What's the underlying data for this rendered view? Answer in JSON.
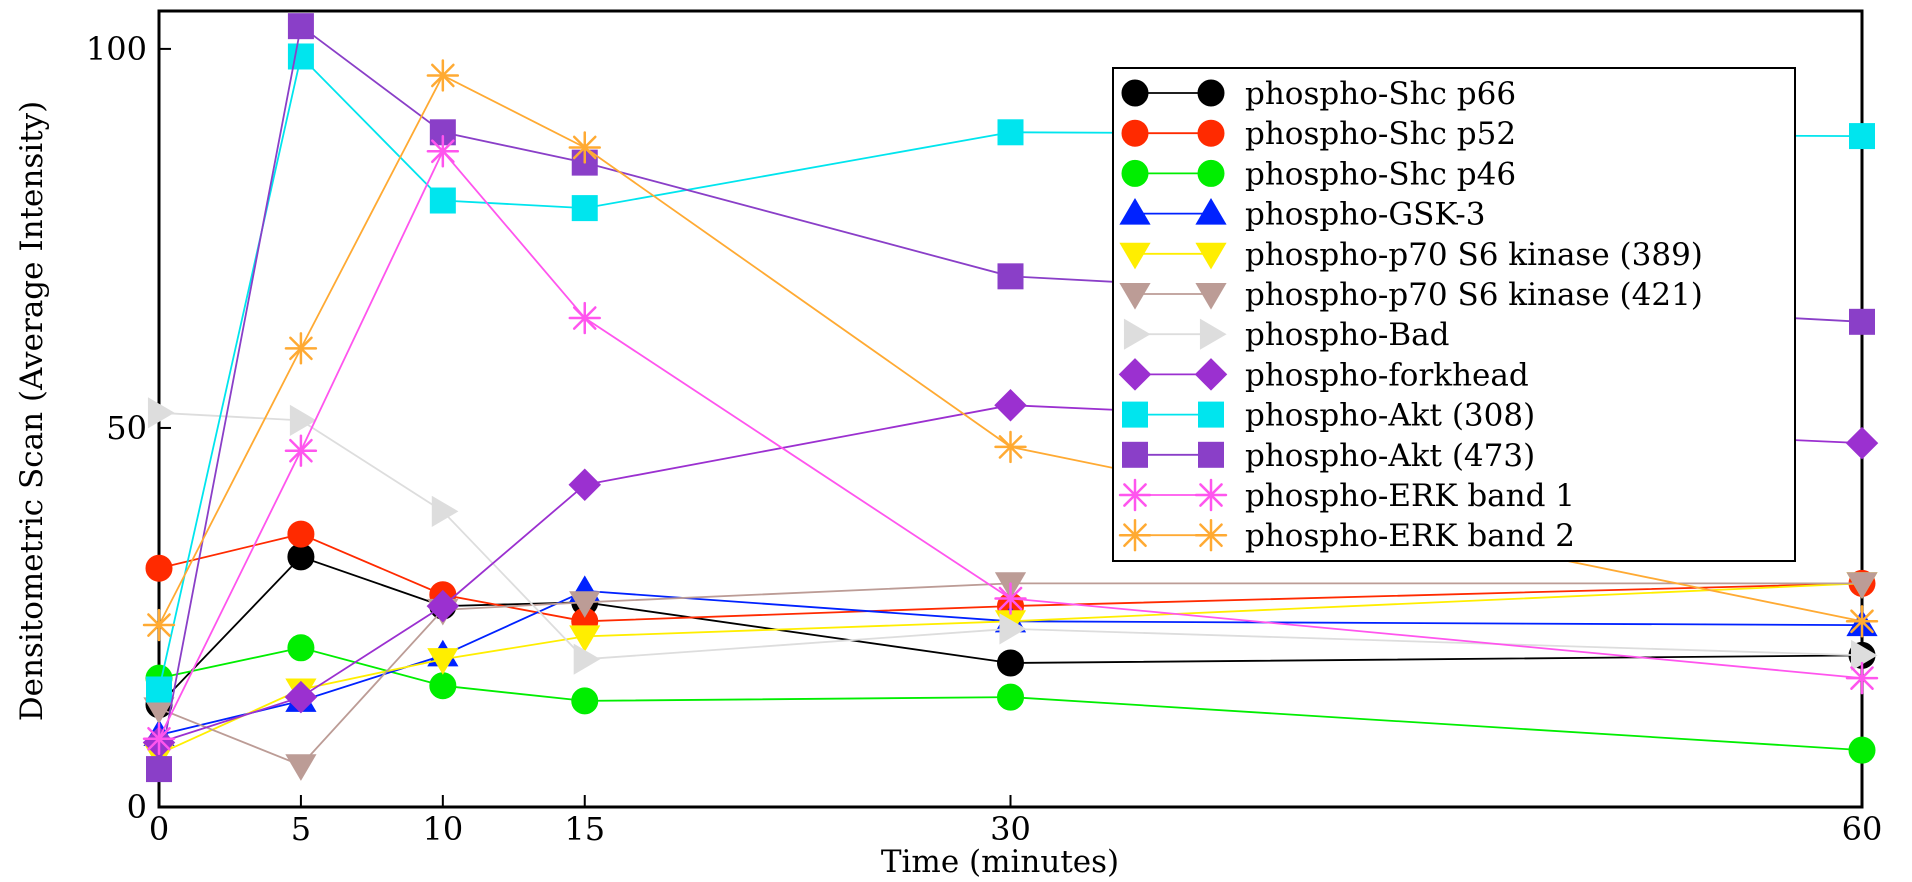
{
  "chart_data": {
    "type": "line",
    "xlabel": "Time (minutes)",
    "ylabel": "Densitometric Scan (Average Intensity)",
    "xlim": [
      0,
      60
    ],
    "ylim": [
      0,
      105
    ],
    "x": [
      0,
      5,
      10,
      15,
      30,
      60
    ],
    "x_ticks": [
      0,
      5,
      10,
      15,
      30,
      60
    ],
    "y_ticks": [
      0,
      50,
      100
    ],
    "grid": false,
    "legend_position": "top-right",
    "series": [
      {
        "name": "phospho-Shc p66",
        "color": "#000000",
        "marker": "circle",
        "values": [
          13.5,
          33,
          26.5,
          27,
          19,
          20
        ]
      },
      {
        "name": "phospho-Shc p52",
        "color": "#ff2a00",
        "marker": "circle",
        "values": [
          31.5,
          36,
          28,
          24.5,
          26.5,
          29.5
        ]
      },
      {
        "name": "phospho-Shc p46",
        "color": "#00ee00",
        "marker": "circle",
        "values": [
          17,
          21,
          16,
          14,
          14.5,
          7.5
        ]
      },
      {
        "name": "phospho-GSK-3",
        "color": "#0022ff",
        "marker": "triangle-up",
        "values": [
          9.5,
          14,
          20,
          28.5,
          24.5,
          24
        ]
      },
      {
        "name": "phospho-p70 S6 kinase (389)",
        "color": "#ffee00",
        "marker": "triangle-down",
        "values": [
          7,
          15.5,
          19.5,
          22.5,
          24.5,
          29.5
        ]
      },
      {
        "name": "phospho-p70 S6 kinase (421)",
        "color": "#bc9c96",
        "marker": "triangle-down",
        "values": [
          13,
          5.5,
          26,
          27,
          29.5,
          29.5
        ]
      },
      {
        "name": "phospho-Bad",
        "color": "#dddddd",
        "marker": "triangle-right",
        "values": [
          52,
          51,
          39,
          19.5,
          23.5,
          20
        ]
      },
      {
        "name": "phospho-forkhead",
        "color": "#9b30d0",
        "marker": "diamond",
        "values": [
          8.5,
          14.5,
          26.5,
          42.5,
          53,
          48
        ]
      },
      {
        "name": "phospho-Akt (308)",
        "color": "#00e5ee",
        "marker": "square",
        "values": [
          15.5,
          99,
          80,
          79,
          89,
          88.5
        ]
      },
      {
        "name": "phospho-Akt (473)",
        "color": "#8a3fc8",
        "marker": "square",
        "values": [
          5,
          103,
          89,
          85,
          70,
          64
        ]
      },
      {
        "name": "phospho-ERK band 1",
        "color": "#ff55ee",
        "marker": "asterisk",
        "values": [
          9,
          47,
          86.5,
          64.5,
          27.5,
          17
        ]
      },
      {
        "name": "phospho-ERK band 2",
        "color": "#ffaa33",
        "marker": "asterisk",
        "values": [
          24,
          60.5,
          96.5,
          87,
          47.5,
          24.5
        ]
      }
    ]
  }
}
